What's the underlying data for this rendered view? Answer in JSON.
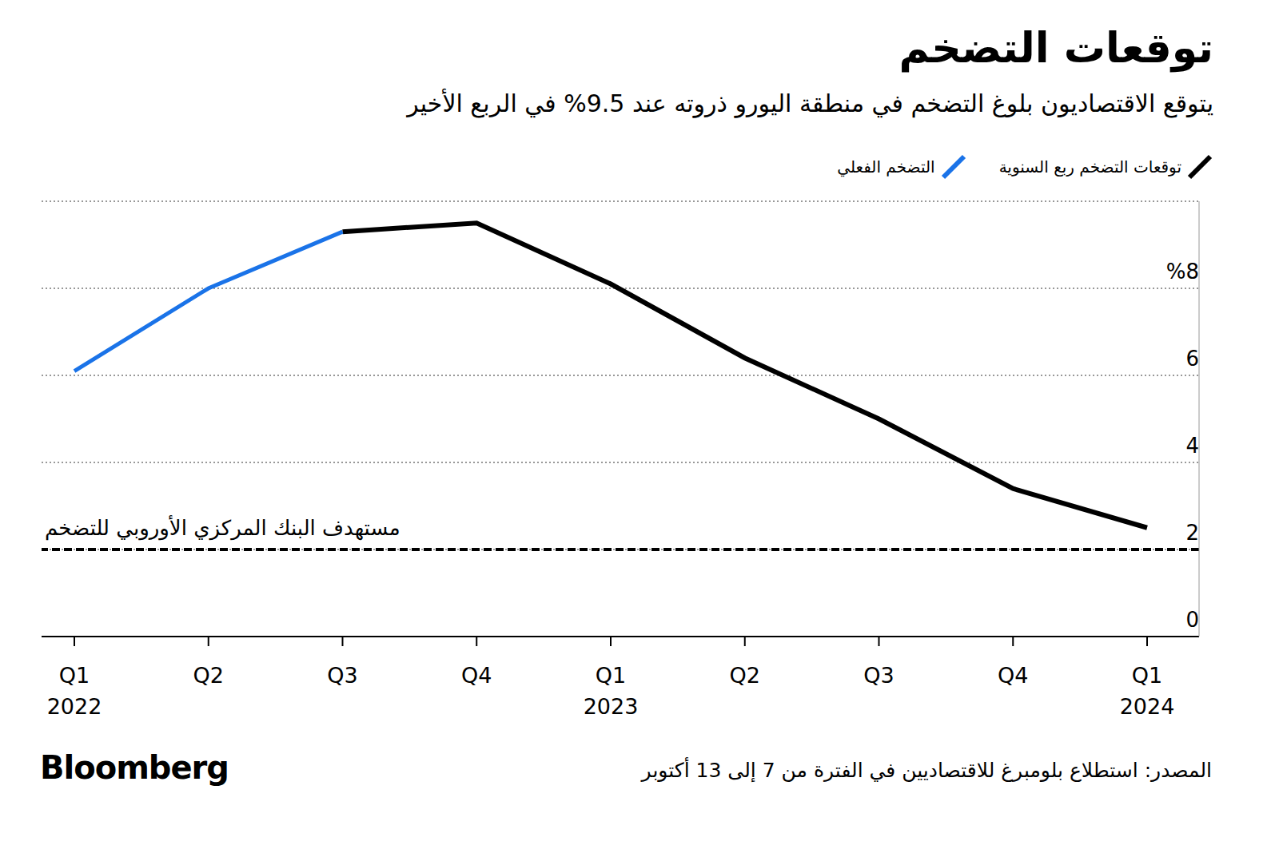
{
  "chart_data": {
    "type": "line",
    "title": "توقعات التضخم",
    "subtitle": "يتوقع الاقتصاديون بلوغ التضخم في منطقة اليورو ذروته عند 9.5% في الربع الأخير",
    "categories": [
      "Q1 2022",
      "Q2",
      "Q3",
      "Q4",
      "Q1 2023",
      "Q2",
      "Q3",
      "Q4",
      "Q1 2024"
    ],
    "series": [
      {
        "name": "توقعات التضخم ربع السنوية",
        "color": "#000000",
        "values": [
          null,
          null,
          9.3,
          9.5,
          8.1,
          6.4,
          5.0,
          3.4,
          2.5
        ]
      },
      {
        "name": "التضخم الفعلي",
        "color": "#1a73e8",
        "values": [
          6.1,
          8.0,
          9.3,
          null,
          null,
          null,
          null,
          null,
          null
        ]
      }
    ],
    "ylim": [
      0,
      10
    ],
    "yticks": [
      0,
      2,
      4,
      6,
      {
        "value": 8,
        "label": "%8"
      }
    ],
    "grid": true,
    "target": {
      "label": "مستهدف البنك المركزي الأوروبي للتضخم",
      "value": 2
    },
    "source": "المصدر: استطلاع بلومبرغ للاقتصاديين في الفترة من 7 إلى 13 أكتوبر",
    "brand": "Bloomberg"
  }
}
